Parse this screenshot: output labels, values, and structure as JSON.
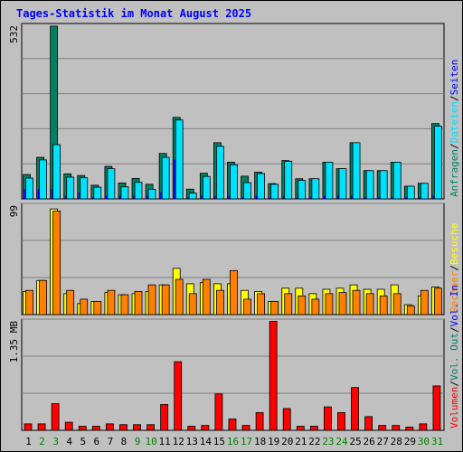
{
  "title": "Tages-Statistik im Monat August 2025",
  "colors": {
    "anfragen": "#008060",
    "dateien": "#00e0ff",
    "seiten": "#0000ff",
    "besuche": "#ffff00",
    "rechner": "#ff8000",
    "volumen": "#ff0000",
    "weekend": "#008000",
    "weekday": "#000000",
    "slash": "#000000",
    "plot_bg": "#c0c0c0",
    "grid": "#808080"
  },
  "chart_data": [
    {
      "type": "bar",
      "panel": "top",
      "ymax_label": "532",
      "ymax": 532,
      "legend": [
        {
          "key": "anfragen",
          "label": "Anfragen"
        },
        {
          "key": "dateien",
          "label": "Dateien"
        },
        {
          "key": "seiten",
          "label": "Seiten"
        }
      ],
      "categories": [
        "1",
        "2",
        "3",
        "4",
        "5",
        "6",
        "7",
        "8",
        "9",
        "10",
        "11",
        "12",
        "13",
        "14",
        "15",
        "16",
        "17",
        "18",
        "19",
        "20",
        "21",
        "22",
        "23",
        "24",
        "25",
        "26",
        "27",
        "28",
        "29",
        "30",
        "31"
      ],
      "series": [
        {
          "name": "Anfragen",
          "key": "anfragen",
          "values": [
            75,
            128,
            532,
            77,
            72,
            42,
            100,
            49,
            63,
            45,
            140,
            251,
            30,
            79,
            173,
            113,
            70,
            82,
            47,
            118,
            62,
            62,
            113,
            93,
            173,
            87,
            87,
            113,
            39,
            48,
            232
          ]
        },
        {
          "name": "Dateien",
          "key": "dateien",
          "values": [
            64,
            120,
            167,
            67,
            65,
            36,
            93,
            37,
            51,
            29,
            128,
            243,
            18,
            69,
            162,
            105,
            50,
            78,
            45,
            116,
            57,
            62,
            113,
            93,
            173,
            87,
            87,
            113,
            39,
            48,
            224
          ]
        },
        {
          "name": "Seiten",
          "key": "seiten",
          "values": [
            30,
            30,
            30,
            10,
            20,
            5,
            10,
            10,
            10,
            10,
            20,
            121,
            5,
            10,
            10,
            10,
            5,
            10,
            5,
            10,
            5,
            5,
            10,
            10,
            10,
            5,
            5,
            5,
            5,
            5,
            10
          ]
        }
      ]
    },
    {
      "type": "bar",
      "panel": "middle",
      "ymax_label": "99",
      "ymax": 99,
      "legend": [
        {
          "key": "rechner",
          "label": "Rechner"
        },
        {
          "key": "besuche",
          "label": "Besuche"
        }
      ],
      "categories": [
        "1",
        "2",
        "3",
        "4",
        "5",
        "6",
        "7",
        "8",
        "9",
        "10",
        "11",
        "12",
        "13",
        "14",
        "15",
        "16",
        "17",
        "18",
        "19",
        "20",
        "21",
        "22",
        "23",
        "24",
        "25",
        "26",
        "27",
        "28",
        "29",
        "30",
        "31"
      ],
      "series": [
        {
          "name": "Besuche",
          "key": "besuche",
          "values": [
            21,
            31,
            96,
            19,
            10,
            12,
            20,
            18,
            19,
            21,
            27,
            42,
            28,
            29,
            28,
            28,
            22,
            21,
            12,
            24,
            24,
            19,
            23,
            24,
            27,
            23,
            23,
            27,
            9,
            17,
            25
          ]
        },
        {
          "name": "Rechner",
          "key": "rechner",
          "values": [
            22,
            31,
            94,
            22,
            14,
            12,
            22,
            18,
            21,
            27,
            27,
            32,
            19,
            32,
            22,
            40,
            14,
            19,
            12,
            19,
            17,
            14,
            19,
            20,
            22,
            19,
            17,
            19,
            8,
            22,
            24
          ]
        }
      ]
    },
    {
      "type": "bar",
      "panel": "bottom",
      "ymax_label": "1.35 MB",
      "ymax": 1.35,
      "legend": [
        {
          "key": "volumen",
          "label": "Volumen"
        },
        {
          "key": "volout",
          "label": "Vol. Out"
        },
        {
          "key": "volin",
          "label": "Vol. In"
        }
      ],
      "categories": [
        "1",
        "2",
        "3",
        "4",
        "5",
        "6",
        "7",
        "8",
        "9",
        "10",
        "11",
        "12",
        "13",
        "14",
        "15",
        "16",
        "17",
        "18",
        "19",
        "20",
        "21",
        "22",
        "23",
        "24",
        "25",
        "26",
        "27",
        "28",
        "29",
        "30",
        "31"
      ],
      "series": [
        {
          "name": "Volumen",
          "key": "volumen",
          "values": [
            0.08,
            0.08,
            0.33,
            0.1,
            0.05,
            0.05,
            0.08,
            0.07,
            0.07,
            0.07,
            0.32,
            0.85,
            0.05,
            0.06,
            0.45,
            0.14,
            0.06,
            0.22,
            1.35,
            0.27,
            0.05,
            0.05,
            0.29,
            0.22,
            0.53,
            0.17,
            0.06,
            0.06,
            0.04,
            0.08,
            0.55
          ]
        }
      ]
    }
  ],
  "weekends": [
    "2",
    "3",
    "9",
    "10",
    "16",
    "17",
    "23",
    "24",
    "30",
    "31"
  ]
}
